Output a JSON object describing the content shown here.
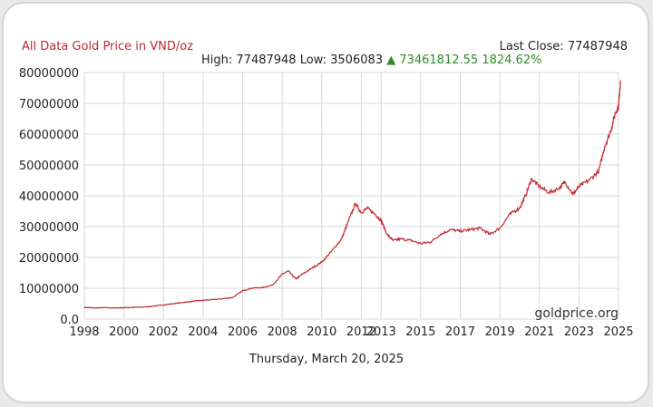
{
  "header": {
    "title": "All Data Gold Price in VND/oz",
    "last_close_label": "Last Close:",
    "last_close_value": "77487948",
    "high_label": "High:",
    "high_value": "77487948",
    "low_label": "Low:",
    "low_value": "3506083",
    "change_arrow": "▲",
    "change_value": "73461812.55",
    "change_pct": "1824.62%"
  },
  "footer": {
    "date": "Thursday, March 20, 2025",
    "watermark": "goldprice.org"
  },
  "colors": {
    "line": "#c0282d",
    "title": "#c0282d",
    "positive": "#2e8b2e",
    "grid": "#d8d8d8"
  },
  "chart_data": {
    "type": "line",
    "title": "All Data Gold Price in VND/oz",
    "xlabel": "",
    "ylabel": "",
    "xlim": [
      1998,
      2025
    ],
    "ylim": [
      0,
      80000000
    ],
    "x_ticks": [
      1998,
      2000,
      2002,
      2004,
      2006,
      2008,
      2010,
      2012,
      2013,
      2015,
      2017,
      2019,
      2021,
      2023,
      2025
    ],
    "y_ticks": [
      0,
      10000000,
      20000000,
      30000000,
      40000000,
      50000000,
      60000000,
      70000000,
      80000000
    ],
    "y_tick_labels": [
      "0.0",
      "10000000",
      "20000000",
      "30000000",
      "40000000",
      "50000000",
      "60000000",
      "70000000",
      "80000000"
    ],
    "grid": true,
    "series": [
      {
        "name": "",
        "points": [
          [
            1998.0,
            3800000
          ],
          [
            1998.5,
            3600000
          ],
          [
            1999.0,
            3700000
          ],
          [
            1999.5,
            3600000
          ],
          [
            2000.0,
            3700000
          ],
          [
            2000.5,
            3800000
          ],
          [
            2001.0,
            3900000
          ],
          [
            2001.5,
            4200000
          ],
          [
            2002.0,
            4600000
          ],
          [
            2002.5,
            5000000
          ],
          [
            2003.0,
            5400000
          ],
          [
            2003.5,
            5800000
          ],
          [
            2004.0,
            6100000
          ],
          [
            2004.5,
            6300000
          ],
          [
            2005.0,
            6600000
          ],
          [
            2005.5,
            7000000
          ],
          [
            2006.0,
            9200000
          ],
          [
            2006.5,
            10100000
          ],
          [
            2007.0,
            10200000
          ],
          [
            2007.5,
            11000000
          ],
          [
            2008.0,
            14500000
          ],
          [
            2008.3,
            15600000
          ],
          [
            2008.7,
            13000000
          ],
          [
            2009.0,
            14500000
          ],
          [
            2009.5,
            16500000
          ],
          [
            2010.0,
            18500000
          ],
          [
            2010.5,
            22000000
          ],
          [
            2011.0,
            26000000
          ],
          [
            2011.3,
            31000000
          ],
          [
            2011.7,
            37500000
          ],
          [
            2012.0,
            34500000
          ],
          [
            2012.3,
            36000000
          ],
          [
            2012.7,
            34000000
          ],
          [
            2013.0,
            32000000
          ],
          [
            2013.3,
            27500000
          ],
          [
            2013.6,
            25500000
          ],
          [
            2014.0,
            26000000
          ],
          [
            2014.5,
            25500000
          ],
          [
            2015.0,
            24500000
          ],
          [
            2015.5,
            25000000
          ],
          [
            2016.0,
            27500000
          ],
          [
            2016.5,
            29000000
          ],
          [
            2017.0,
            28500000
          ],
          [
            2017.5,
            29000000
          ],
          [
            2018.0,
            29500000
          ],
          [
            2018.5,
            27500000
          ],
          [
            2019.0,
            29500000
          ],
          [
            2019.5,
            34000000
          ],
          [
            2020.0,
            36000000
          ],
          [
            2020.3,
            40000000
          ],
          [
            2020.6,
            45500000
          ],
          [
            2021.0,
            43000000
          ],
          [
            2021.5,
            41000000
          ],
          [
            2022.0,
            42500000
          ],
          [
            2022.3,
            44500000
          ],
          [
            2022.7,
            40500000
          ],
          [
            2023.0,
            43000000
          ],
          [
            2023.5,
            45000000
          ],
          [
            2024.0,
            48000000
          ],
          [
            2024.3,
            56000000
          ],
          [
            2024.6,
            61000000
          ],
          [
            2024.85,
            67000000
          ],
          [
            2025.0,
            69000000
          ],
          [
            2025.1,
            77487948
          ]
        ]
      }
    ]
  }
}
